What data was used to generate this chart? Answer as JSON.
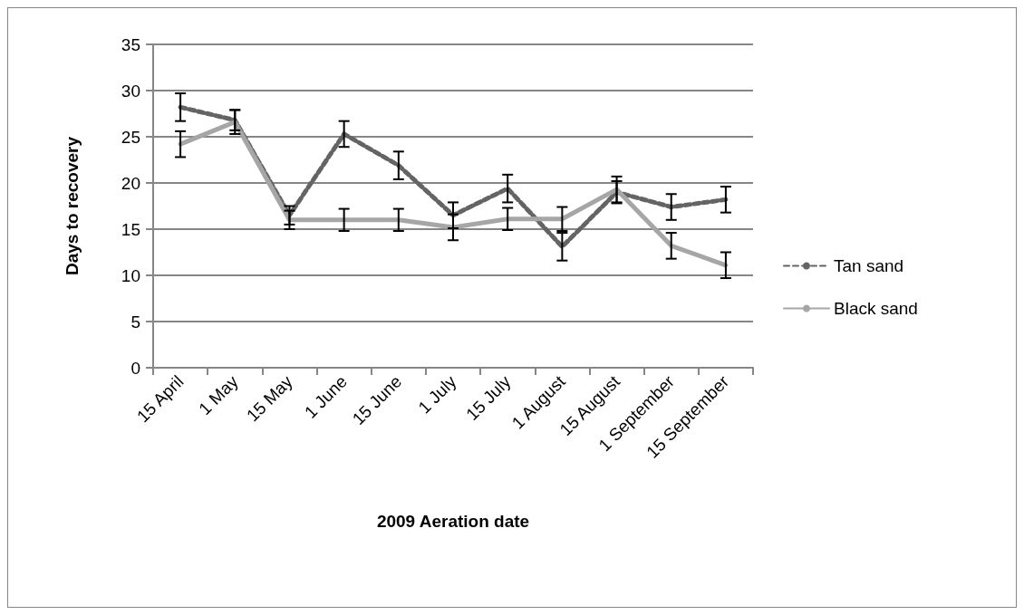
{
  "chart_data": {
    "type": "line",
    "xlabel": "2009 Aeration date",
    "ylabel": "Days to recovery",
    "categories": [
      "15 April",
      "1 May",
      "15 May",
      "1 June",
      "15 June",
      "1 July",
      "15 July",
      "1 August",
      "15 August",
      "1 September",
      "15 September"
    ],
    "series": [
      {
        "name": "Tan sand",
        "color": "#646464",
        "line_style": "dashed",
        "values": [
          28.2,
          26.8,
          16.5,
          25.3,
          21.9,
          16.5,
          19.4,
          13.1,
          19.0,
          17.4,
          18.2
        ],
        "errors": [
          1.5,
          1.1,
          1,
          1.4,
          1.5,
          1.4,
          1.5,
          1.5,
          1.2,
          1.4,
          1.4
        ]
      },
      {
        "name": "Black sand",
        "color": "#a6a6a6",
        "line_style": "solid",
        "values": [
          24.2,
          26.6,
          16,
          16,
          16,
          15.2,
          16.1,
          16.1,
          19.3,
          13.2,
          11.1
        ],
        "errors": [
          1.4,
          1.3,
          1,
          1.2,
          1.2,
          1.4,
          1.2,
          1.3,
          1.4,
          1.4,
          1.4
        ]
      }
    ],
    "ylim": [
      0,
      35
    ],
    "yticks": [
      0,
      5,
      10,
      15,
      20,
      25,
      30,
      35
    ],
    "grid": "y",
    "legend": "right",
    "marker": "none"
  }
}
